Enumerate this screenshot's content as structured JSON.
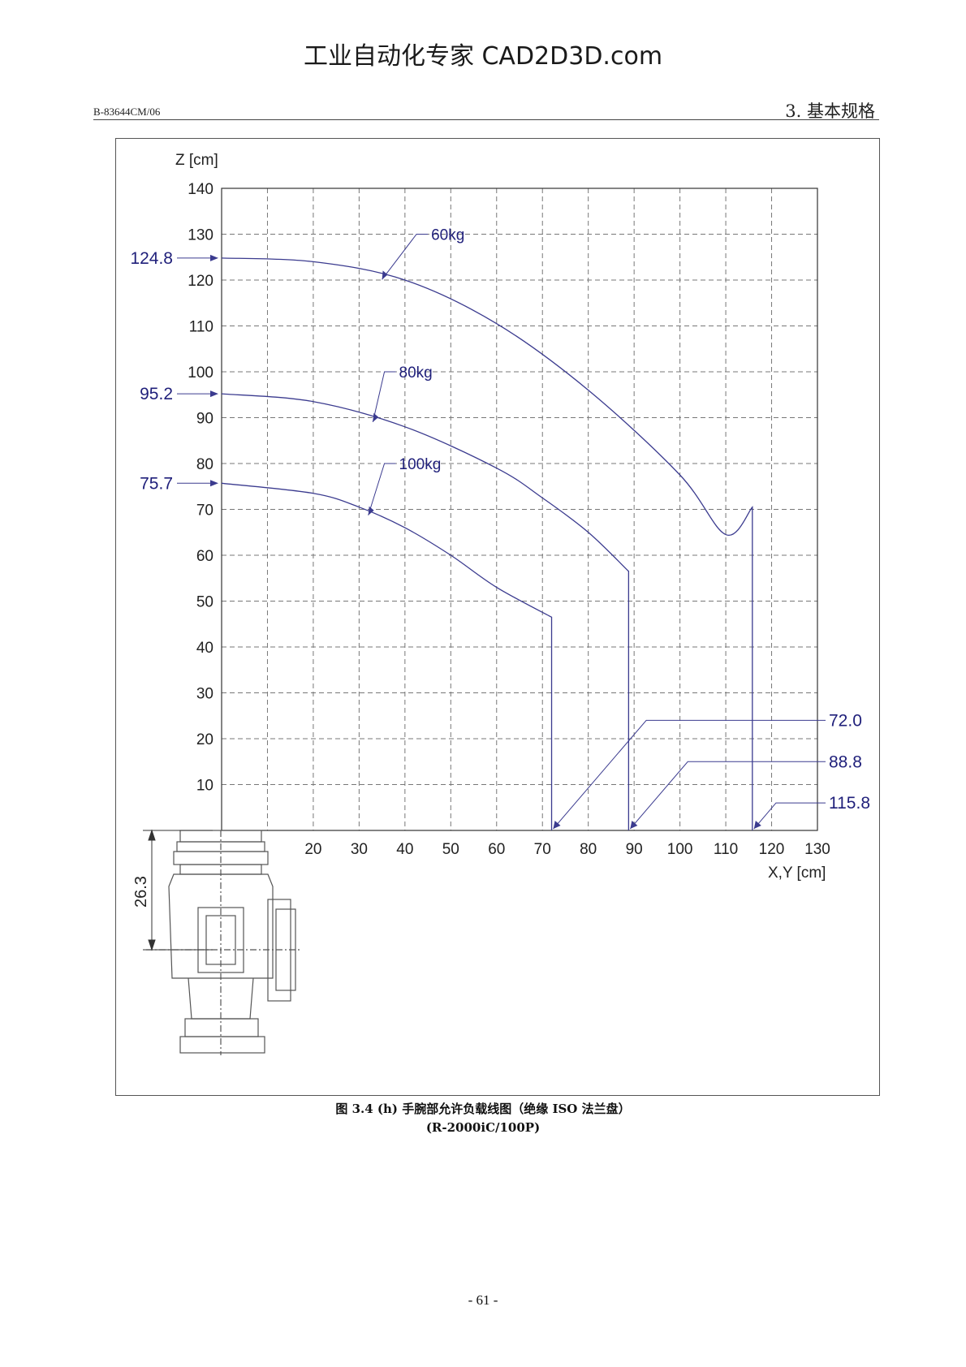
{
  "watermark": "工业自动化专家 CAD2D3D.com",
  "header": {
    "doc_id": "B-83644CM/06",
    "section": "3. 基本规格"
  },
  "caption": {
    "line1": "图 3.4 (h)  手腕部允许负载线图（绝缘 ISO 法兰盘）",
    "line2": "(R-2000iC/100P)"
  },
  "page_number": "- 61 -",
  "colors": {
    "curve": "#3b3b8f",
    "label": "#1f1f7a",
    "grid": "#777777",
    "axis": "#333333"
  },
  "chart_data": {
    "type": "line",
    "xlabel": "X,Y [cm]",
    "ylabel": "Z [cm]",
    "xlim": [
      0,
      130
    ],
    "ylim": [
      0,
      140
    ],
    "x_ticks": [
      20,
      30,
      40,
      50,
      60,
      70,
      80,
      90,
      100,
      110,
      120,
      130
    ],
    "y_ticks": [
      10,
      20,
      30,
      40,
      50,
      60,
      70,
      80,
      90,
      100,
      110,
      120,
      130,
      140
    ],
    "grid": true,
    "series": [
      {
        "name": "60kg",
        "z_max": "124.8",
        "x_max": "115.8",
        "points": [
          [
            0,
            124.8
          ],
          [
            20,
            124.0
          ],
          [
            40,
            120.0
          ],
          [
            60,
            110.5
          ],
          [
            80,
            96.0
          ],
          [
            100,
            77.5
          ],
          [
            110,
            64.5
          ],
          [
            115.8,
            70.5
          ],
          [
            115.8,
            0
          ]
        ]
      },
      {
        "name": "80kg",
        "z_max": "95.2",
        "x_max": "88.8",
        "points": [
          [
            0,
            95.2
          ],
          [
            20,
            93.5
          ],
          [
            40,
            88.0
          ],
          [
            60,
            79.0
          ],
          [
            70,
            72.5
          ],
          [
            80,
            65.0
          ],
          [
            88.8,
            56.5
          ],
          [
            88.8,
            0
          ]
        ]
      },
      {
        "name": "100kg",
        "z_max": "75.7",
        "x_max": "72.0",
        "points": [
          [
            0,
            75.7
          ],
          [
            20,
            73.5
          ],
          [
            30,
            70.5
          ],
          [
            40,
            66.0
          ],
          [
            50,
            60.0
          ],
          [
            60,
            53.0
          ],
          [
            72,
            46.5
          ],
          [
            72,
            0
          ]
        ]
      }
    ],
    "offset_dimension": "26.3"
  }
}
